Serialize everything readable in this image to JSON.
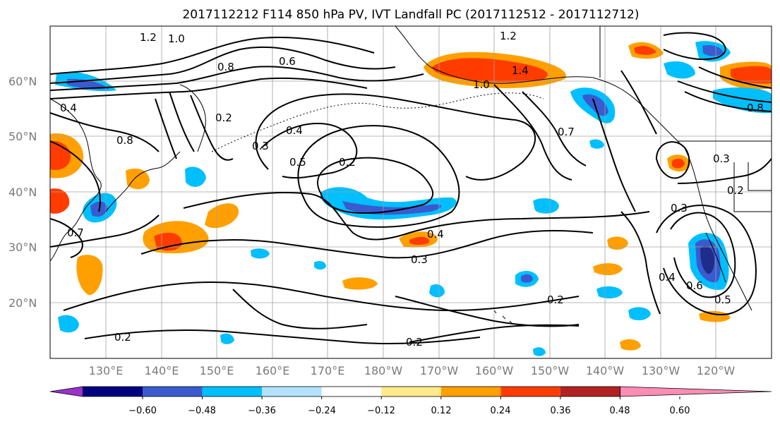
{
  "title": "2017112212 F114 850 hPa PV, IVT Landfall PC (2017112512 - 2017112712)",
  "map": {
    "lat_labels": [
      "60°N",
      "50°N",
      "40°N",
      "30°N",
      "20°N"
    ],
    "lon_labels": [
      "130°E",
      "140°E",
      "150°E",
      "160°E",
      "170°E",
      "180°W",
      "170°W",
      "160°W",
      "150°W",
      "140°W",
      "130°W",
      "120°W"
    ],
    "contour_labels": [
      "1.2",
      "1.0",
      "0.6",
      "0.8",
      "1.2",
      "1.4",
      "1.0",
      "0.4",
      "0.8",
      "0.4",
      "0.3",
      "0.5",
      "0.2",
      "0.2",
      "0.7",
      "0.3",
      "0.3",
      "0.2",
      "0.4",
      "0.3",
      "0.2",
      "0.2",
      "0.2",
      "0.4",
      "0.6",
      "0.5",
      "0.7",
      "0.8"
    ]
  },
  "colorbar": {
    "ticks": [
      "−0.60",
      "−0.48",
      "−0.36",
      "−0.24",
      "−0.12",
      "0.12",
      "0.24",
      "0.36",
      "0.48",
      "0.60"
    ],
    "colors": [
      "#9933cc",
      "#000080",
      "#3a5bd0",
      "#00bfff",
      "#b2e2ff",
      "#ffffff",
      "#ffe98a",
      "#ffa000",
      "#ff3c00",
      "#b22222",
      "#ff8cb4"
    ]
  },
  "colors": {
    "orange": "#ffa000",
    "red": "#ff3c00",
    "light_yellow": "#ffe98a",
    "light_blue": "#b2e2ff",
    "cyan": "#00bfff",
    "blue": "#3a5bd0"
  }
}
